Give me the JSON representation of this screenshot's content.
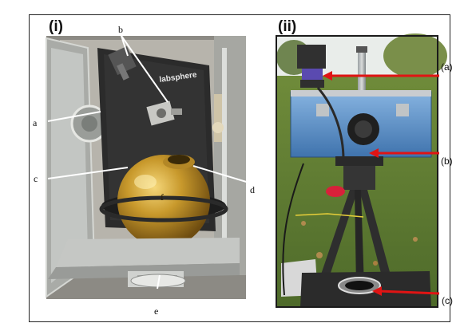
{
  "panels": {
    "left": {
      "label": "(i)",
      "callouts": [
        "a",
        "b",
        "c",
        "d",
        "e",
        "f"
      ],
      "brand_text": "labsphere"
    },
    "right": {
      "label": "(ii)",
      "callouts": [
        "(a)",
        "(b)",
        "(c)"
      ]
    }
  },
  "colors": {
    "enclosure_dark": "#2b2b2b",
    "sphere_gold": "#c59a2e",
    "case_blue": "#5b8fc7",
    "grass_green": "#5e7a33",
    "arrow_red": "#e01414",
    "sky": "#eef2f0"
  }
}
